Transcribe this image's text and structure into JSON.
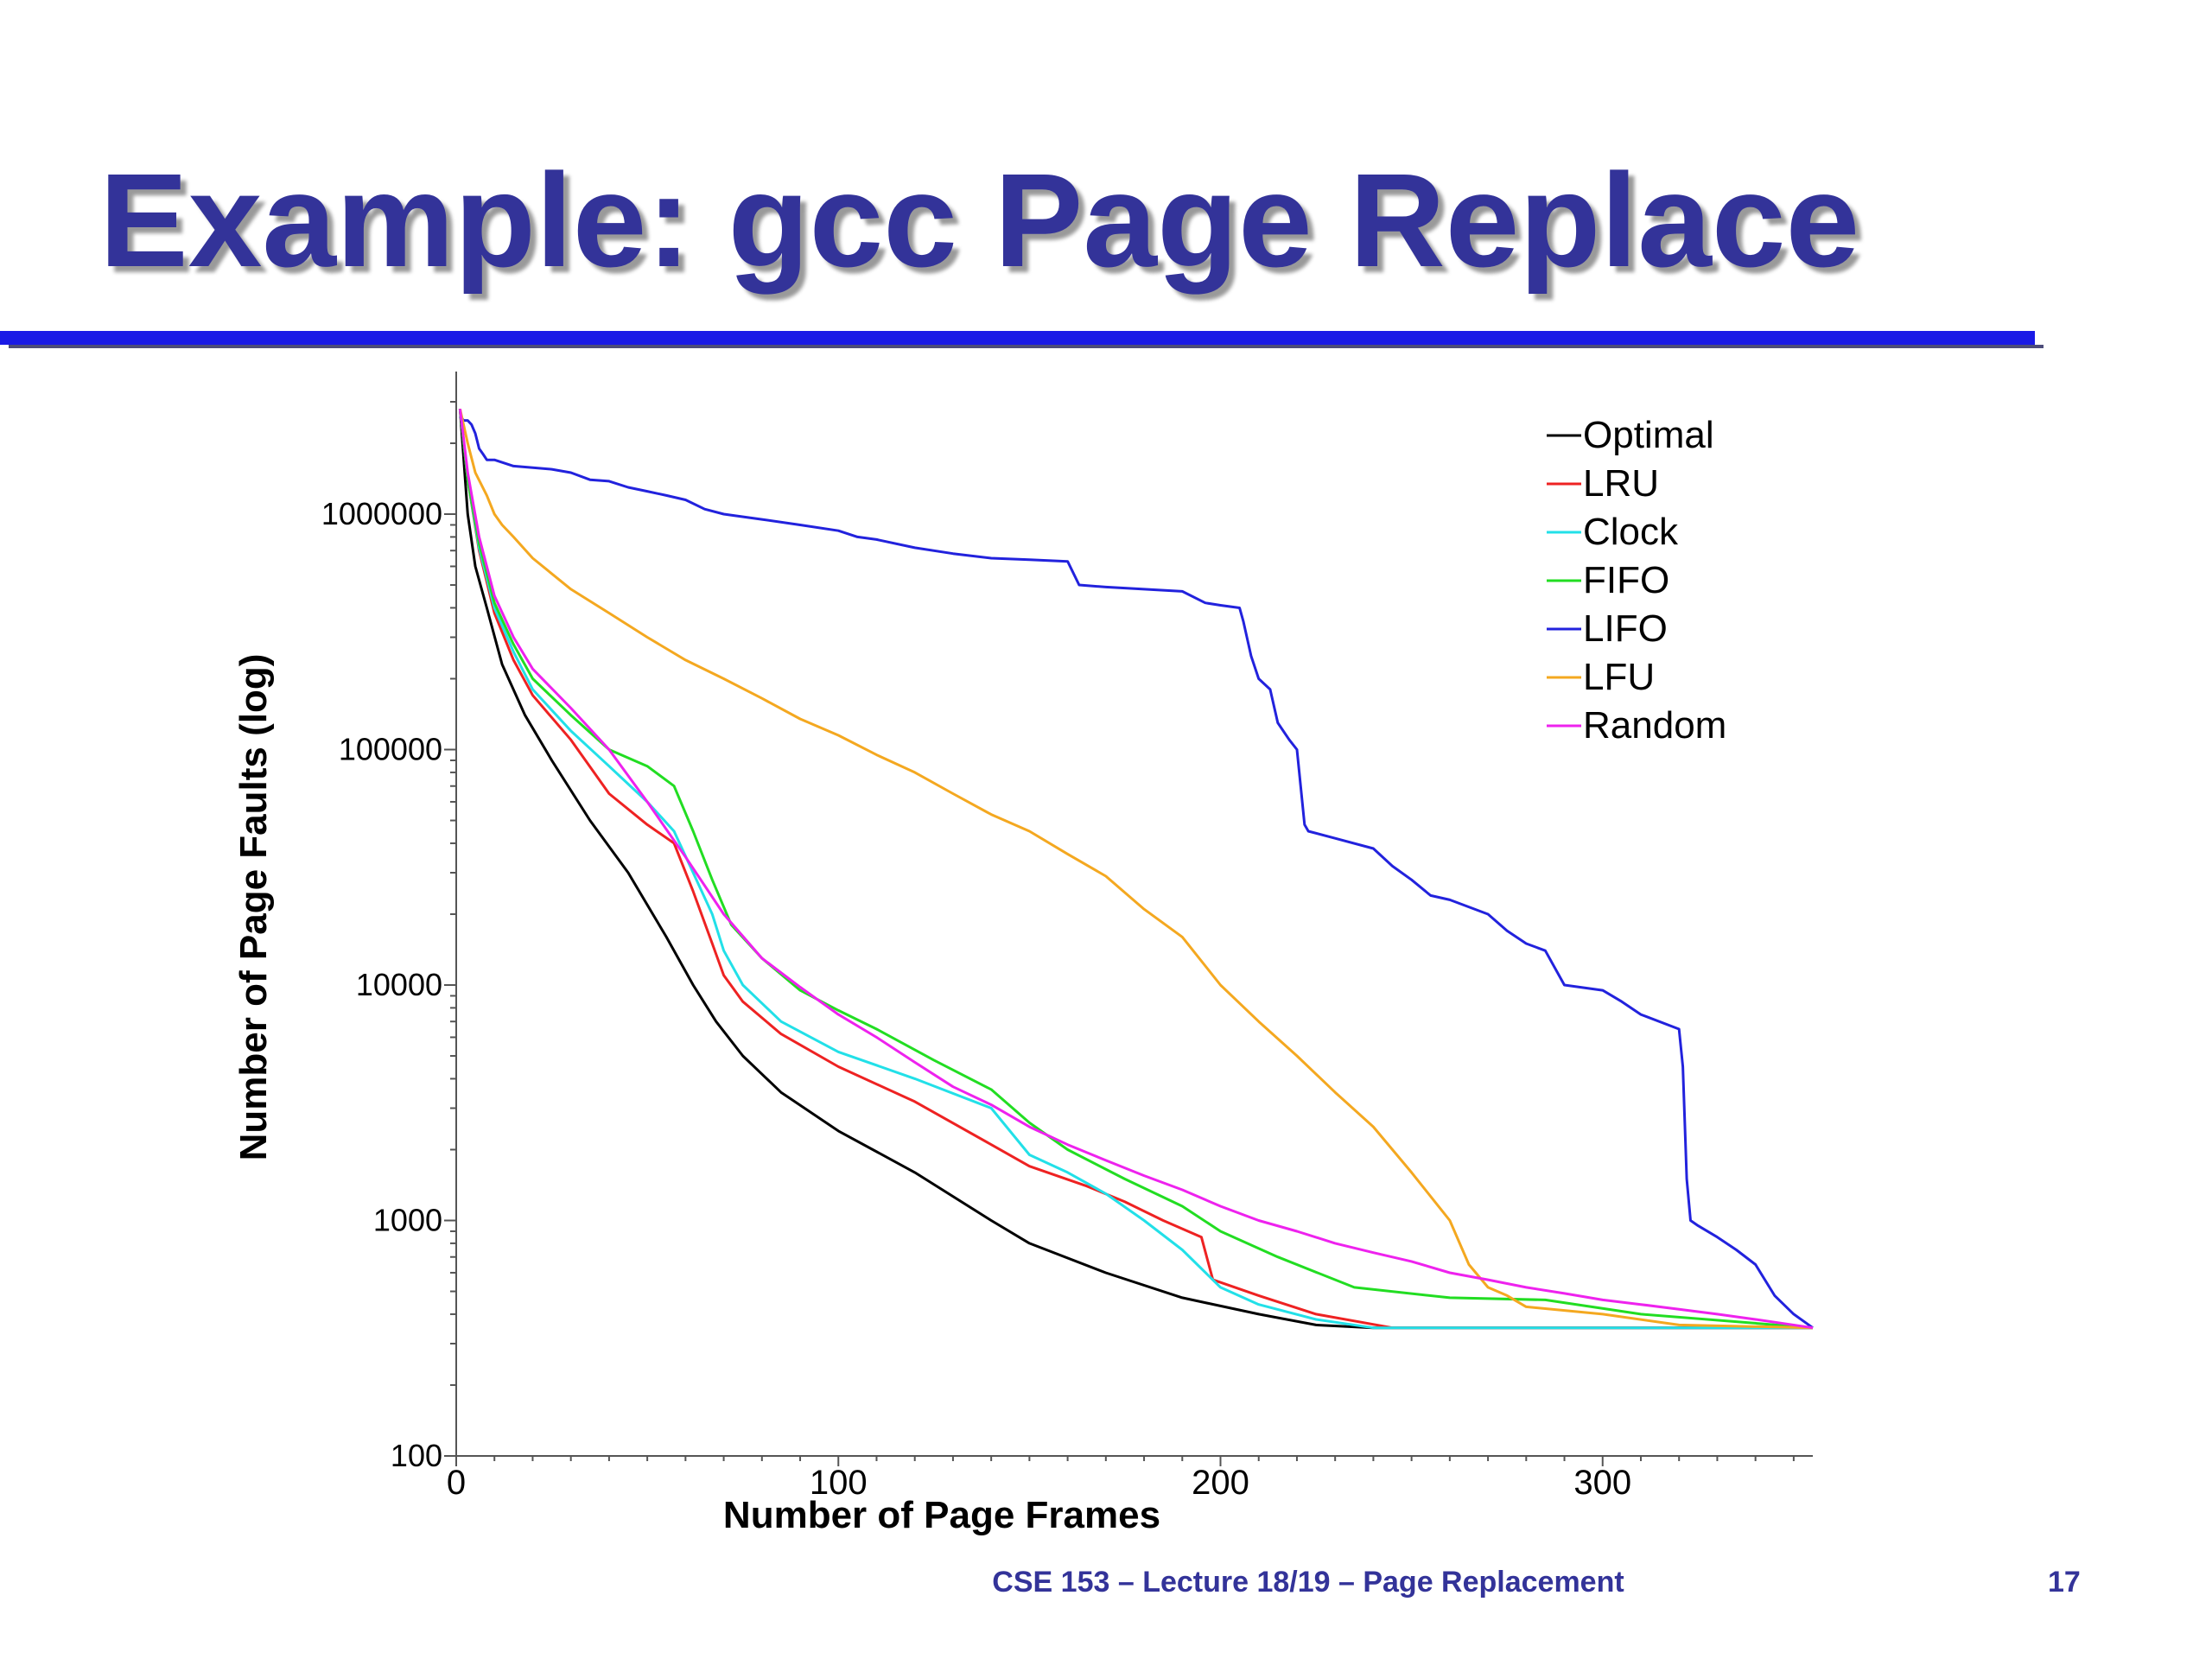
{
  "slide": {
    "title": "Example: gcc Page Replace",
    "footer": "CSE 153 – Lecture 18/19 – Page Replacement",
    "page_number": "17"
  },
  "chart_data": {
    "type": "line",
    "xlabel": "Number of Page Frames",
    "ylabel": "Number of Page Faults (log)",
    "xlim": [
      0,
      355
    ],
    "ylim": [
      100,
      3000000
    ],
    "y_scale": "log",
    "x_ticks": [
      0,
      100,
      200,
      300
    ],
    "y_ticks": [
      100,
      1000,
      10000,
      100000,
      1000000
    ],
    "y_tick_labels": [
      "100",
      "1000",
      "10000",
      "100000",
      "1000000"
    ],
    "grid": false,
    "legend_position": "top-right",
    "series": [
      {
        "name": "Optimal",
        "color": "#000000",
        "x": [
          1,
          3,
          5,
          8,
          12,
          18,
          25,
          35,
          45,
          55,
          62,
          68,
          75,
          85,
          100,
          120,
          140,
          150,
          170,
          190,
          210,
          225,
          240,
          355
        ],
        "y": [
          2800000,
          1000000,
          600000,
          400000,
          230000,
          140000,
          90000,
          50000,
          30000,
          16000,
          10000,
          7000,
          5000,
          3500,
          2400,
          1600,
          1000,
          800,
          600,
          470,
          400,
          360,
          350,
          350
        ]
      },
      {
        "name": "LRU",
        "color": "#ee2222",
        "x": [
          1,
          3,
          6,
          10,
          15,
          20,
          30,
          40,
          50,
          57,
          62,
          67,
          70,
          75,
          85,
          100,
          120,
          140,
          150,
          165,
          175,
          185,
          195,
          198,
          210,
          225,
          245,
          260,
          355
        ],
        "y": [
          2800000,
          1400000,
          700000,
          380000,
          240000,
          170000,
          110000,
          65000,
          48000,
          40000,
          25000,
          15000,
          11000,
          8500,
          6200,
          4500,
          3200,
          2100,
          1700,
          1400,
          1200,
          1000,
          850,
          560,
          480,
          400,
          350,
          350,
          350
        ]
      },
      {
        "name": "Clock",
        "color": "#22e0e8",
        "x": [
          1,
          3,
          6,
          10,
          15,
          20,
          30,
          40,
          50,
          57,
          62,
          67,
          70,
          75,
          85,
          100,
          120,
          140,
          150,
          160,
          170,
          180,
          190,
          200,
          210,
          225,
          240,
          260,
          355
        ],
        "y": [
          2800000,
          1400000,
          720000,
          400000,
          260000,
          180000,
          120000,
          85000,
          60000,
          45000,
          30000,
          20000,
          14000,
          10000,
          7000,
          5200,
          4000,
          3000,
          1900,
          1600,
          1300,
          1000,
          750,
          520,
          440,
          380,
          350,
          350,
          350
        ]
      },
      {
        "name": "FIFO",
        "color": "#22dd22",
        "x": [
          1,
          3,
          6,
          10,
          15,
          20,
          30,
          40,
          50,
          57,
          62,
          67,
          72,
          80,
          90,
          100,
          110,
          125,
          140,
          150,
          160,
          175,
          190,
          200,
          215,
          235,
          260,
          285,
          310,
          355
        ],
        "y": [
          2800000,
          1400000,
          750000,
          420000,
          280000,
          200000,
          140000,
          100000,
          85000,
          70000,
          45000,
          28000,
          18000,
          13000,
          9500,
          7800,
          6500,
          4800,
          3600,
          2600,
          2000,
          1500,
          1150,
          900,
          700,
          520,
          470,
          460,
          400,
          350
        ]
      },
      {
        "name": "LIFO",
        "color": "#2222dd",
        "x": [
          1,
          2,
          3,
          4,
          5,
          6,
          7,
          8,
          9,
          10,
          15,
          25,
          30,
          35,
          40,
          45,
          50,
          55,
          60,
          65,
          70,
          80,
          90,
          100,
          105,
          110,
          120,
          130,
          140,
          150,
          160,
          163,
          170,
          180,
          190,
          196,
          200,
          205,
          206,
          208,
          210,
          213,
          215,
          218,
          220,
          222,
          223,
          230,
          240,
          245,
          250,
          255,
          260,
          270,
          275,
          280,
          285,
          290,
          300,
          305,
          310,
          320,
          321,
          322,
          323,
          325,
          330,
          335,
          340,
          345,
          350,
          355
        ],
        "y": [
          2600000,
          2500000,
          2500000,
          2400000,
          2200000,
          1900000,
          1800000,
          1700000,
          1700000,
          1700000,
          1600000,
          1550000,
          1500000,
          1400000,
          1380000,
          1300000,
          1250000,
          1200000,
          1150000,
          1050000,
          1000000,
          950000,
          900000,
          850000,
          800000,
          780000,
          720000,
          680000,
          650000,
          640000,
          630000,
          500000,
          490000,
          480000,
          470000,
          420000,
          410000,
          400000,
          350000,
          250000,
          200000,
          180000,
          130000,
          110000,
          100000,
          48000,
          45000,
          42000,
          38000,
          32000,
          28000,
          24000,
          23000,
          20000,
          17000,
          15000,
          14000,
          10000,
          9500,
          8500,
          7500,
          6500,
          4500,
          1500,
          1000,
          950,
          850,
          750,
          650,
          480,
          400,
          350
        ]
      },
      {
        "name": "LFU",
        "color": "#f4a820",
        "x": [
          1,
          3,
          5,
          8,
          10,
          12,
          15,
          20,
          30,
          40,
          50,
          60,
          70,
          80,
          90,
          100,
          110,
          120,
          130,
          140,
          150,
          160,
          170,
          180,
          190,
          200,
          210,
          220,
          230,
          240,
          250,
          260,
          265,
          270,
          275,
          280,
          300,
          320,
          355
        ],
        "y": [
          2800000,
          2000000,
          1500000,
          1200000,
          1000000,
          900000,
          800000,
          650000,
          480000,
          380000,
          300000,
          240000,
          200000,
          165000,
          135000,
          115000,
          95000,
          80000,
          65000,
          53000,
          45000,
          36000,
          29000,
          21000,
          16000,
          10000,
          7000,
          5000,
          3500,
          2500,
          1600,
          1000,
          650,
          520,
          480,
          430,
          400,
          360,
          350
        ]
      },
      {
        "name": "Random",
        "color": "#ee22ee",
        "x": [
          1,
          3,
          6,
          10,
          15,
          20,
          30,
          40,
          50,
          60,
          70,
          80,
          90,
          100,
          110,
          120,
          130,
          140,
          150,
          160,
          170,
          180,
          190,
          200,
          210,
          220,
          230,
          240,
          250,
          260,
          270,
          280,
          290,
          300,
          310,
          320,
          330,
          340,
          355
        ],
        "y": [
          2800000,
          1500000,
          800000,
          450000,
          300000,
          220000,
          150000,
          100000,
          60000,
          35000,
          20000,
          13000,
          9800,
          7500,
          6000,
          4700,
          3700,
          3100,
          2500,
          2100,
          1800,
          1550,
          1350,
          1150,
          1000,
          900,
          800,
          730,
          670,
          600,
          560,
          520,
          490,
          460,
          440,
          420,
          400,
          380,
          350
        ]
      }
    ]
  }
}
